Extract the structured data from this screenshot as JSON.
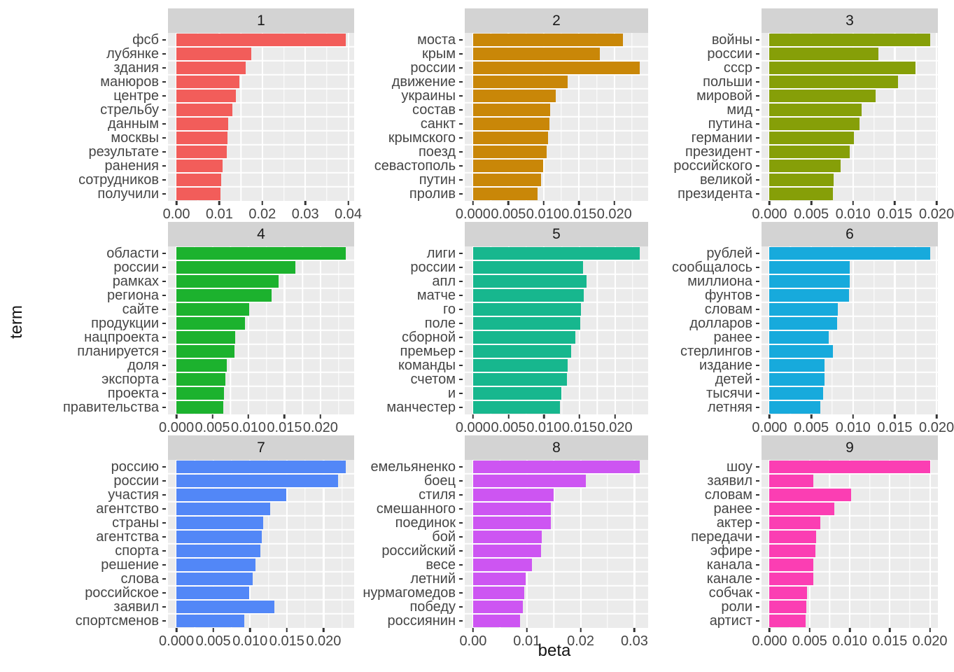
{
  "figure": {
    "kind": "faceted horizontal bar chart (ggplot2 style)",
    "panel_background": "#ebebeb",
    "strip_background": "#d3d3d3",
    "grid_color": "#ffffff",
    "text_color": "#454545",
    "title_color": "#141414"
  },
  "chart_data": {
    "type": "bar",
    "orientation": "horizontal",
    "xlabel": "beta",
    "ylabel": "term",
    "layout": {
      "rows": 3,
      "cols": 3,
      "grid": "on",
      "legend": "none"
    },
    "facets": [
      {
        "label": "1",
        "color": "#F25D5A",
        "x_max": 0.0394,
        "x_tick_values": [
          0,
          0.01,
          0.02,
          0.03,
          0.04
        ],
        "x_tick_labels": [
          "0.00",
          "0.01",
          "0.02",
          "0.03",
          "0.04"
        ],
        "terms": [
          "фсб",
          "лубянке",
          "здания",
          "манюров",
          "центре",
          "стрельбу",
          "данным",
          "москвы",
          "результате",
          "ранения",
          "сотрудников",
          "получили"
        ],
        "values": [
          0.0394,
          0.0174,
          0.0161,
          0.0147,
          0.0139,
          0.0131,
          0.012,
          0.0118,
          0.0117,
          0.0107,
          0.0104,
          0.0102
        ]
      },
      {
        "label": "2",
        "color": "#C98708",
        "x_max": 0.0236,
        "x_tick_values": [
          0,
          0.005,
          0.01,
          0.015,
          0.02
        ],
        "x_tick_labels": [
          "0.000",
          "0.005",
          "0.010",
          "0.015",
          "0.020"
        ],
        "terms": [
          "моста",
          "крым",
          "россии",
          "движение",
          "украины",
          "состав",
          "санкт",
          "крымского",
          "поезд",
          "севастополь",
          "путин",
          "пролив"
        ],
        "values": [
          0.0212,
          0.0179,
          0.0236,
          0.0134,
          0.0117,
          0.0109,
          0.0108,
          0.0106,
          0.0104,
          0.0099,
          0.0096,
          0.0091
        ]
      },
      {
        "label": "3",
        "color": "#869F08",
        "x_max": 0.0192,
        "x_tick_values": [
          0,
          0.005,
          0.01,
          0.015,
          0.02
        ],
        "x_tick_labels": [
          "0.000",
          "0.005",
          "0.010",
          "0.015",
          "0.020"
        ],
        "terms": [
          "войны",
          "россии",
          "ссср",
          "польши",
          "мировой",
          "мид",
          "путина",
          "германии",
          "президент",
          "российского",
          "великой",
          "президента"
        ],
        "values": [
          0.0192,
          0.013,
          0.0175,
          0.0154,
          0.0127,
          0.011,
          0.0108,
          0.0101,
          0.0096,
          0.0085,
          0.0077,
          0.0076
        ]
      },
      {
        "label": "4",
        "color": "#1CB22E",
        "x_max": 0.0235,
        "x_tick_values": [
          0,
          0.005,
          0.01,
          0.015,
          0.02
        ],
        "x_tick_labels": [
          "0.000",
          "0.005",
          "0.010",
          "0.015",
          "0.020"
        ],
        "terms": [
          "области",
          "россии",
          "рамках",
          "региона",
          "сайте",
          "продукции",
          "нацпроекта",
          "планируется",
          "доля",
          "экспорта",
          "проекта",
          "правительства"
        ],
        "values": [
          0.0235,
          0.0165,
          0.0142,
          0.0132,
          0.0101,
          0.0095,
          0.0082,
          0.0081,
          0.007,
          0.0068,
          0.0066,
          0.0065
        ]
      },
      {
        "label": "5",
        "color": "#17B78E",
        "x_max": 0.0235,
        "x_tick_values": [
          0,
          0.005,
          0.01,
          0.015,
          0.02
        ],
        "x_tick_labels": [
          "0.000",
          "0.005",
          "0.010",
          "0.015",
          "0.020"
        ],
        "terms": [
          "лиги",
          "россии",
          "апл",
          "матче",
          "го",
          "поле",
          "сборной",
          "премьер",
          "команды",
          "счетом",
          "и",
          "манчестер"
        ],
        "values": [
          0.0235,
          0.0155,
          0.016,
          0.0156,
          0.0152,
          0.0151,
          0.0144,
          0.0138,
          0.0133,
          0.0132,
          0.0124,
          0.0122
        ]
      },
      {
        "label": "6",
        "color": "#17AADC",
        "x_max": 0.0192,
        "x_tick_values": [
          0,
          0.005,
          0.01,
          0.015,
          0.02
        ],
        "x_tick_labels": [
          "0.000",
          "0.005",
          "0.010",
          "0.015",
          "0.020"
        ],
        "terms": [
          "рублей",
          "сообщалось",
          "миллиона",
          "фунтов",
          "словам",
          "долларов",
          "ранее",
          "стерлингов",
          "издание",
          "детей",
          "тысячи",
          "летняя"
        ],
        "values": [
          0.0192,
          0.0096,
          0.0096,
          0.0095,
          0.0082,
          0.0081,
          0.0071,
          0.0076,
          0.0066,
          0.0066,
          0.0064,
          0.0061
        ]
      },
      {
        "label": "7",
        "color": "#5287F7",
        "x_max": 0.023,
        "x_tick_values": [
          0,
          0.005,
          0.01,
          0.015,
          0.02
        ],
        "x_tick_labels": [
          "0.000",
          "0.005",
          "0.010",
          "0.015",
          "0.020"
        ],
        "terms": [
          "россию",
          "россии",
          "участия",
          "агентство",
          "страны",
          "агентства",
          "спорта",
          "решение",
          "слова",
          "российское",
          "заявил",
          "спортсменов"
        ],
        "values": [
          0.023,
          0.022,
          0.0149,
          0.0127,
          0.0118,
          0.0116,
          0.0114,
          0.0107,
          0.0104,
          0.0099,
          0.0133,
          0.0092
        ]
      },
      {
        "label": "8",
        "color": "#CD55F2",
        "x_max": 0.031,
        "x_tick_values": [
          0,
          0.01,
          0.02,
          0.03
        ],
        "x_tick_labels": [
          "0.00",
          "0.01",
          "0.02",
          "0.03"
        ],
        "terms": [
          "емельяненко",
          "боец",
          "стиля",
          "смешанного",
          "поединок",
          "бой",
          "российский",
          "весе",
          "летний",
          "нурмагомедов",
          "победу",
          "россиянин"
        ],
        "values": [
          0.031,
          0.021,
          0.015,
          0.0144,
          0.0144,
          0.0128,
          0.0127,
          0.0109,
          0.0098,
          0.0095,
          0.0092,
          0.0087
        ]
      },
      {
        "label": "9",
        "color": "#FB3EB3",
        "x_max": 0.02,
        "x_tick_values": [
          0,
          0.005,
          0.01,
          0.015,
          0.02
        ],
        "x_tick_labels": [
          "0.000",
          "0.005",
          "0.010",
          "0.015",
          "0.020"
        ],
        "terms": [
          "шоу",
          "заявил",
          "словам",
          "ранее",
          "актер",
          "передачи",
          "эфире",
          "канала",
          "канале",
          "собчак",
          "роли",
          "артист"
        ],
        "values": [
          0.02,
          0.0055,
          0.0102,
          0.0081,
          0.0063,
          0.0058,
          0.0057,
          0.0055,
          0.0055,
          0.0047,
          0.0046,
          0.0045
        ]
      }
    ]
  }
}
